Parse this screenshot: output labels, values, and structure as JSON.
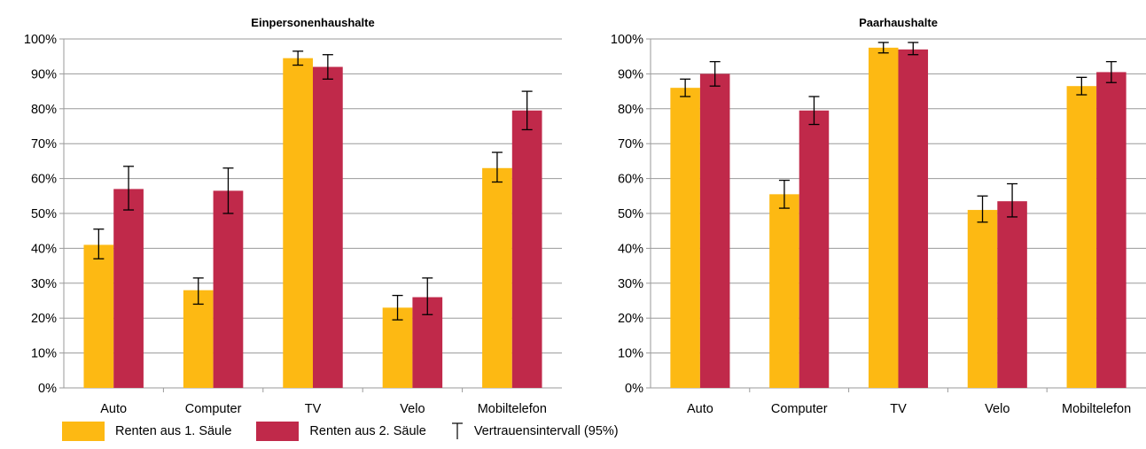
{
  "chart_data": [
    {
      "type": "bar",
      "title": "Einpersonenhaushalte",
      "categories": [
        "Auto",
        "Computer",
        "TV",
        "Velo",
        "Mobiltelefon"
      ],
      "ylim": [
        0,
        100
      ],
      "yticks": [
        "0%",
        "10%",
        "20%",
        "30%",
        "40%",
        "50%",
        "60%",
        "70%",
        "80%",
        "90%",
        "100%"
      ],
      "grid": true,
      "series": [
        {
          "name": "Renten aus 1. Säule",
          "values": [
            41,
            28,
            94.5,
            23,
            63
          ],
          "ci_low": [
            37,
            24,
            92.5,
            19.5,
            59
          ],
          "ci_high": [
            45.5,
            31.5,
            96.5,
            26.5,
            67.5
          ]
        },
        {
          "name": "Renten aus 2. Säule",
          "values": [
            57,
            56.5,
            92,
            26,
            79.5
          ],
          "ci_low": [
            51,
            50,
            88.5,
            21,
            74
          ],
          "ci_high": [
            63.5,
            63,
            95.5,
            31.5,
            85
          ]
        }
      ]
    },
    {
      "type": "bar",
      "title": "Paarhaushalte",
      "categories": [
        "Auto",
        "Computer",
        "TV",
        "Velo",
        "Mobiltelefon"
      ],
      "ylim": [
        0,
        100
      ],
      "yticks": [
        "0%",
        "10%",
        "20%",
        "30%",
        "40%",
        "50%",
        "60%",
        "70%",
        "80%",
        "90%",
        "100%"
      ],
      "grid": true,
      "series": [
        {
          "name": "Renten aus 1. Säule",
          "values": [
            86,
            55.5,
            97.5,
            51,
            86.5
          ],
          "ci_low": [
            83.5,
            51.5,
            96,
            47.5,
            84
          ],
          "ci_high": [
            88.5,
            59.5,
            99,
            55,
            89
          ]
        },
        {
          "name": "Renten aus 2. Säule",
          "values": [
            90,
            79.5,
            97,
            53.5,
            90.5
          ],
          "ci_low": [
            86.5,
            75.5,
            95.5,
            49,
            87.5
          ],
          "ci_high": [
            93.5,
            83.5,
            99,
            58.5,
            93.5
          ]
        }
      ]
    }
  ],
  "legend": {
    "series1_label": "Renten aus 1. Säule",
    "series2_label": "Renten aus 2. Säule",
    "ci_label": "Vertrauensintervall (95%)"
  },
  "colors": {
    "series1": "#FDB913",
    "series2": "#C0294A",
    "grid": "#9a9a9a",
    "plot_bg": "#ffffff",
    "errorbar": "#000000"
  }
}
